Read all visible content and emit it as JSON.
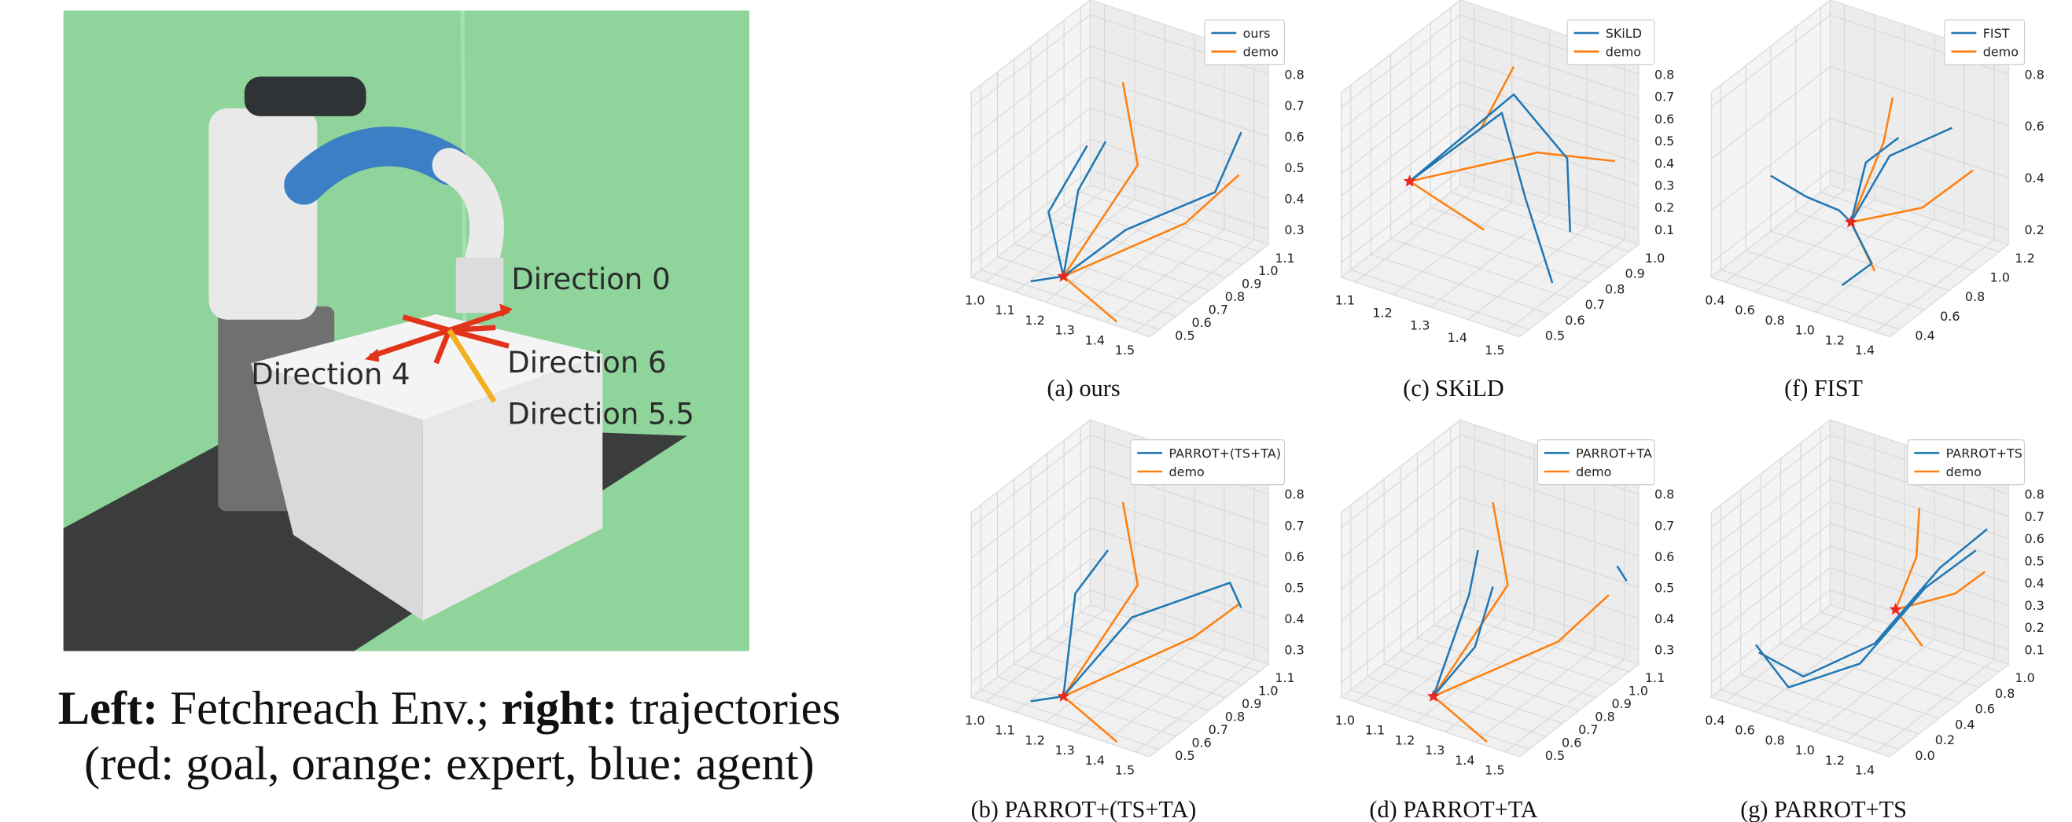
{
  "left": {
    "directions": [
      "Direction 0",
      "Direction 6",
      "Direction 4",
      "Direction 5.5"
    ],
    "caption": {
      "bold1": "Left:",
      "text1": " Fetchreach Env.; ",
      "bold2": "right:",
      "text2": " trajectories",
      "line2": "(red: goal, orange: expert, blue: agent)"
    }
  },
  "panels": [
    {
      "caption": "(a) ours",
      "legend": [
        "ours",
        "demo"
      ],
      "xticks": [
        "1.0",
        "1.1",
        "1.2",
        "1.3",
        "1.4",
        "1.5"
      ],
      "yticks": [
        "0.5",
        "0.6",
        "0.7",
        "0.8",
        "0.9",
        "1.0",
        "1.1"
      ],
      "zticks": [
        "0.3",
        "0.4",
        "0.5",
        "0.6",
        "0.7",
        "0.8"
      ]
    },
    {
      "caption": "(c) SKiLD",
      "legend": [
        "SKiLD",
        "demo"
      ],
      "xticks": [
        "1.1",
        "1.2",
        "1.3",
        "1.4",
        "1.5"
      ],
      "yticks": [
        "0.5",
        "0.6",
        "0.7",
        "0.8",
        "0.9",
        "1.0"
      ],
      "zticks": [
        "0.1",
        "0.2",
        "0.3",
        "0.4",
        "0.5",
        "0.6",
        "0.7",
        "0.8"
      ]
    },
    {
      "caption": "(f) FIST",
      "legend": [
        "FIST",
        "demo"
      ],
      "xticks": [
        "0.4",
        "0.6",
        "0.8",
        "1.0",
        "1.2",
        "1.4"
      ],
      "yticks": [
        "0.4",
        "0.6",
        "0.8",
        "1.0",
        "1.2"
      ],
      "zticks": [
        "0.2",
        "0.4",
        "0.6",
        "0.8"
      ]
    },
    {
      "caption": "(b) PARROT+(TS+TA)",
      "legend": [
        "PARROT+(TS+TA)",
        "demo"
      ],
      "xticks": [
        "1.0",
        "1.1",
        "1.2",
        "1.3",
        "1.4",
        "1.5"
      ],
      "yticks": [
        "0.5",
        "0.6",
        "0.7",
        "0.8",
        "0.9",
        "1.0",
        "1.1"
      ],
      "zticks": [
        "0.3",
        "0.4",
        "0.5",
        "0.6",
        "0.7",
        "0.8"
      ]
    },
    {
      "caption": "(d) PARROT+TA",
      "legend": [
        "PARROT+TA",
        "demo"
      ],
      "xticks": [
        "1.0",
        "1.1",
        "1.2",
        "1.3",
        "1.4",
        "1.5"
      ],
      "yticks": [
        "0.5",
        "0.6",
        "0.7",
        "0.8",
        "0.9",
        "1.0",
        "1.1"
      ],
      "zticks": [
        "0.3",
        "0.4",
        "0.5",
        "0.6",
        "0.7",
        "0.8"
      ]
    },
    {
      "caption": "(g) PARROT+TS",
      "legend": [
        "PARROT+TS",
        "demo"
      ],
      "xticks": [
        "0.4",
        "0.6",
        "0.8",
        "1.0",
        "1.2",
        "1.4"
      ],
      "yticks": [
        "0.0",
        "0.2",
        "0.4",
        "0.6",
        "0.8",
        "1.0"
      ],
      "zticks": [
        "0.1",
        "0.2",
        "0.3",
        "0.4",
        "0.5",
        "0.6",
        "0.7",
        "0.8"
      ]
    }
  ]
}
